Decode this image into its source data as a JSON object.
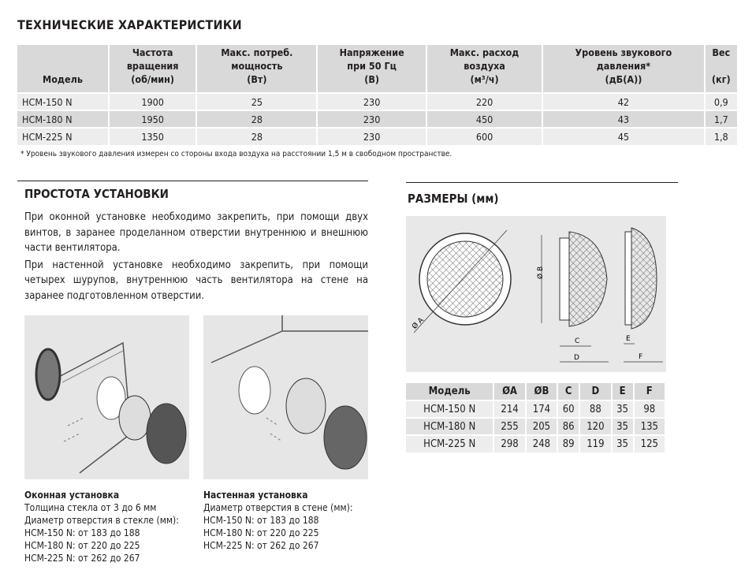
{
  "title": "ТЕХНИЧЕСКИЕ ХАРАКТЕРИСТИКИ",
  "spec_table": {
    "headers": [
      [
        "Модель"
      ],
      [
        "Частота",
        "вращения",
        "(об/мин)"
      ],
      [
        "Макс. потреб.",
        "мощность",
        "(Вт)"
      ],
      [
        "Напряжение",
        "при 50 Гц",
        "(В)"
      ],
      [
        "Макс. расход",
        "воздуха",
        "(м³/ч)"
      ],
      [
        "Уровень звукового",
        "давления*",
        "(дБ(А))"
      ],
      [
        "Вес",
        "",
        "(кг)"
      ]
    ],
    "rows": [
      [
        "HCM-150 N",
        "1900",
        "25",
        "230",
        "220",
        "42",
        "0,9"
      ],
      [
        "HCM-180 N",
        "1950",
        "28",
        "230",
        "450",
        "43",
        "1,7"
      ],
      [
        "HCM-225 N",
        "1350",
        "28",
        "230",
        "600",
        "45",
        "1,8"
      ]
    ]
  },
  "footnote": "* Уровень звукового давления измерен со стороны входа воздуха на расстоянии 1,5 м в свободном пространстве.",
  "install": {
    "title": "ПРОСТОТА УСТАНОВКИ",
    "paragraphs": [
      "При оконной установке необходимо закрепить, при помощи двух винтов, в заранее проделанном отверстии внутреннюю и внешнюю части вентилятора.",
      "При настенной установке необходимо закрепить, при помощи четырех шурупов, внутреннюю часть вентилятора на стене на заранее подготовленном отверстии."
    ],
    "window": {
      "title": "Оконная установка",
      "lines": [
        "Толщина стекла от 3 до 6 мм",
        "Диаметр отверстия в стекле (мм):",
        "HCM-150 N:  от 183 до 188",
        "HCM-180 N:  от 220 до 225",
        "HCM-225 N:  от 262 до 267"
      ]
    },
    "wall": {
      "title": "Настенная установка",
      "lines": [
        "Диаметр отверстия в стене (мм):",
        "HCM-150 N:  от 183 до 188",
        "HCM-180 N:  от 220 до 225",
        "HCM-225 N:  от 262 до 267"
      ]
    }
  },
  "dimensions": {
    "title": "РАЗМЕРЫ (мм)",
    "diagram_labels": {
      "a": "Ø A",
      "b": "Ø B",
      "c": "C",
      "d": "D",
      "e": "E",
      "f": "F"
    },
    "headers": [
      "Модель",
      "ØA",
      "ØB",
      "C",
      "D",
      "E",
      "F"
    ],
    "rows": [
      [
        "HCM-150 N",
        "214",
        "174",
        "60",
        "88",
        "35",
        "98"
      ],
      [
        "HCM-180 N",
        "255",
        "205",
        "86",
        "120",
        "35",
        "135"
      ],
      [
        "HCM-225 N",
        "298",
        "248",
        "89",
        "119",
        "35",
        "125"
      ]
    ]
  }
}
